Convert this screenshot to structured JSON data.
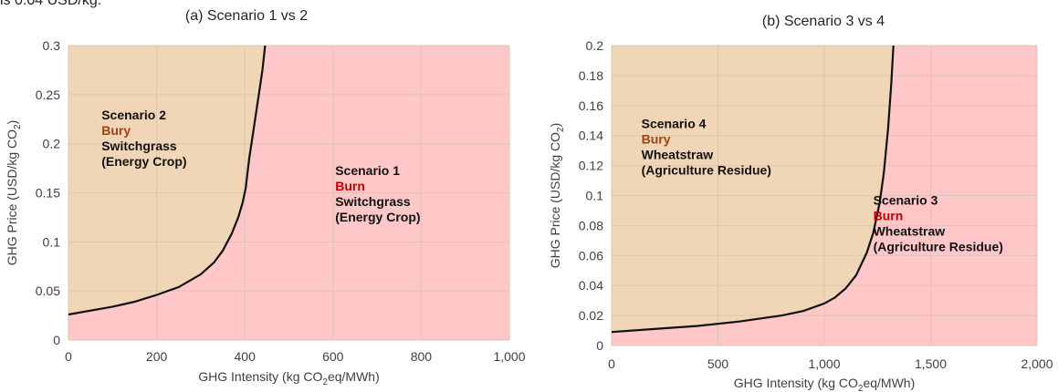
{
  "page": {
    "top_caption": "is 0.04 USD/kg."
  },
  "chart_data": [
    {
      "type": "area",
      "title": "(a) Scenario 1 vs 2",
      "xlabel": "GHG Intensity (kg CO₂eq/MWh)",
      "ylabel": "GHG Price (USD/kg CO₂)",
      "xlim": [
        0,
        1000
      ],
      "ylim": [
        0,
        0.3
      ],
      "x_ticks": [
        "0",
        "200",
        "400",
        "600",
        "800",
        "1,000"
      ],
      "y_ticks": [
        "0",
        "0.05",
        "0.1",
        "0.15",
        "0.2",
        "0.25",
        "0.3"
      ],
      "grid": true,
      "boundary": {
        "x": [
          0,
          50,
          100,
          150,
          200,
          250,
          300,
          330,
          350,
          370,
          385,
          395,
          402,
          410,
          420,
          430,
          440,
          446
        ],
        "y": [
          0.026,
          0.03,
          0.034,
          0.039,
          0.046,
          0.054,
          0.067,
          0.079,
          0.091,
          0.108,
          0.125,
          0.14,
          0.155,
          0.185,
          0.215,
          0.245,
          0.275,
          0.3
        ]
      },
      "regions": [
        {
          "name": "bury",
          "side": "above",
          "color": "#f0d5b7"
        },
        {
          "name": "burn",
          "side": "below",
          "color": "#ffc7c8"
        }
      ],
      "annotations": [
        {
          "x": 75,
          "y": 0.225,
          "lines": [
            {
              "text": "Scenario 2",
              "color": "#111111"
            },
            {
              "text": "Bury",
              "color": "#a0420f"
            },
            {
              "text": "Switchgrass",
              "color": "#111111"
            },
            {
              "text": "(Energy Crop)",
              "color": "#111111"
            }
          ]
        },
        {
          "x": 605,
          "y": 0.168,
          "lines": [
            {
              "text": "Scenario 1",
              "color": "#111111"
            },
            {
              "text": "Burn",
              "color": "#c00000"
            },
            {
              "text": "Switchgrass",
              "color": "#111111"
            },
            {
              "text": "(Energy Crop)",
              "color": "#111111"
            }
          ]
        }
      ]
    },
    {
      "type": "area",
      "title": "(b) Scenario 3 vs 4",
      "xlabel": "GHG Intensity (kg CO₂eq/MWh)",
      "ylabel": "GHG Price (USD/kg CO₂)",
      "xlim": [
        0,
        2000
      ],
      "ylim": [
        0,
        0.2
      ],
      "x_ticks": [
        "0",
        "500",
        "1,000",
        "1,500",
        "2,000"
      ],
      "y_ticks": [
        "0",
        "0.02",
        "0.04",
        "0.06",
        "0.08",
        "0.1",
        "0.12",
        "0.14",
        "0.16",
        "0.18",
        "0.2"
      ],
      "grid": true,
      "boundary": {
        "x": [
          0,
          200,
          400,
          600,
          800,
          900,
          1000,
          1050,
          1100,
          1150,
          1200,
          1230,
          1260,
          1280,
          1300,
          1315,
          1325
        ],
        "y": [
          0.009,
          0.011,
          0.013,
          0.016,
          0.02,
          0.023,
          0.028,
          0.032,
          0.038,
          0.047,
          0.062,
          0.075,
          0.095,
          0.115,
          0.145,
          0.175,
          0.2
        ]
      },
      "regions": [
        {
          "name": "bury",
          "side": "above",
          "color": "#f0d5b7"
        },
        {
          "name": "burn",
          "side": "below",
          "color": "#ffc7c8"
        }
      ],
      "annotations": [
        {
          "x": 140,
          "y": 0.145,
          "lines": [
            {
              "text": "Scenario 4",
              "color": "#111111"
            },
            {
              "text": "Bury",
              "color": "#a0420f"
            },
            {
              "text": "Wheatstraw",
              "color": "#111111"
            },
            {
              "text": "(Agriculture Residue)",
              "color": "#111111"
            }
          ]
        },
        {
          "x": 1230,
          "y": 0.094,
          "lines": [
            {
              "text": "Scenario 3",
              "color": "#111111"
            },
            {
              "text": "Burn",
              "color": "#c00000"
            },
            {
              "text": "Wheatstraw",
              "color": "#111111"
            },
            {
              "text": "(Agriculture Residue)",
              "color": "#111111"
            }
          ]
        }
      ]
    }
  ]
}
